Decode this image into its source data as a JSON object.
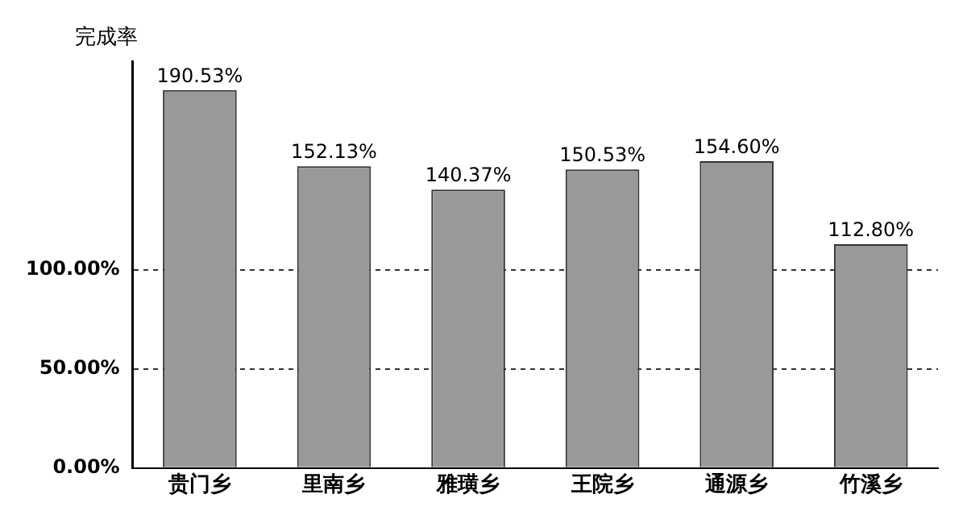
{
  "chart_data": {
    "type": "bar",
    "ylabel": "完成率",
    "categories": [
      "贵门乡",
      "里南乡",
      "雅璜乡",
      "王院乡",
      "通源乡",
      "竹溪乡"
    ],
    "values": [
      190.53,
      152.13,
      140.37,
      150.53,
      154.6,
      112.8
    ],
    "value_labels": [
      "190.53%",
      "152.13%",
      "140.37%",
      "150.53%",
      "154.60%",
      "112.80%"
    ],
    "color": "#999999",
    "ylim": [
      0,
      205
    ],
    "yticks": [
      {
        "value": 0,
        "label": "0.00%"
      },
      {
        "value": 50,
        "label": "50.00%"
      },
      {
        "value": 100,
        "label": "100.00%"
      }
    ],
    "grid": "y",
    "legend": false
  }
}
